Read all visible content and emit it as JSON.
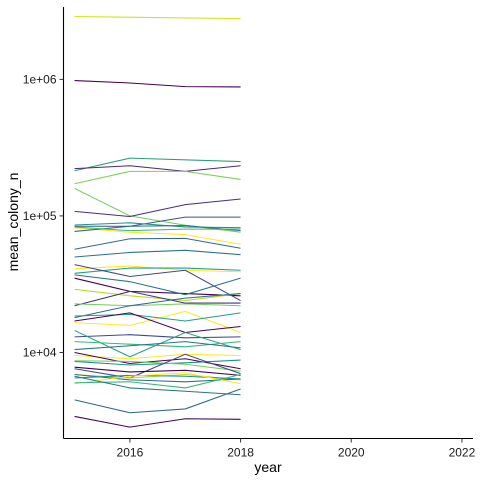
{
  "chart_data": {
    "type": "line",
    "title": "",
    "xlabel": "year",
    "ylabel": "mean_colony_n",
    "x": [
      2015,
      2016,
      2017,
      2018
    ],
    "xlim": [
      2014.8,
      2022.2
    ],
    "ylim_log10": [
      3.37,
      6.53
    ],
    "y_scale": "log10",
    "x_ticks": [
      2016,
      2018,
      2020,
      2022
    ],
    "x_tick_labels": [
      "2016",
      "2018",
      "2020",
      "2022"
    ],
    "y_ticks": [
      10000,
      100000,
      1000000
    ],
    "y_tick_labels": [
      "1e+04",
      "1e+05",
      "1e+06"
    ],
    "grid": false,
    "legend": "none",
    "series": [
      {
        "color": "#d2e21b",
        "values": [
          2888000,
          null,
          null,
          2784000
        ]
      },
      {
        "color": "#440154",
        "values": [
          980000,
          941000,
          885000,
          880000
        ]
      },
      {
        "color": "#2a9d7c",
        "values": [
          214000,
          265000,
          null,
          250000
        ]
      },
      {
        "color": "#482677",
        "values": [
          222000,
          233000,
          212000,
          233000
        ]
      },
      {
        "color": "#7ad151",
        "values": [
          172000,
          212000,
          212000,
          185000
        ]
      },
      {
        "color": "#6ece58",
        "values": [
          159000,
          100000,
          85500,
          76000
        ]
      },
      {
        "color": "#472d7b",
        "values": [
          108000,
          99000,
          121000,
          133000
        ]
      },
      {
        "color": "#3b528b",
        "values": [
          84000,
          84000,
          98000,
          98000
        ]
      },
      {
        "color": "#21918c",
        "values": [
          85800,
          89000,
          83000,
          82000
        ]
      },
      {
        "color": "#fde725",
        "values": [
          82000,
          76000,
          73000,
          62000
        ]
      },
      {
        "color": "#2c728e",
        "values": [
          77000,
          84000,
          85000,
          78000
        ]
      },
      {
        "color": "#35b779",
        "values": [
          83000,
          78000,
          80000,
          80000
        ]
      },
      {
        "color": "#31688e",
        "values": [
          57000,
          68000,
          68500,
          58000
        ]
      },
      {
        "color": "#2c728e",
        "values": [
          50000,
          54000,
          56000,
          52000
        ]
      },
      {
        "color": "#fde725",
        "values": [
          41000,
          43000,
          40000,
          39000
        ]
      },
      {
        "color": "#1f9e89",
        "values": [
          38000,
          41500,
          41500,
          40000
        ]
      },
      {
        "color": "#3e4a89",
        "values": [
          44000,
          36000,
          40000,
          24000
        ]
      },
      {
        "color": "#440154",
        "values": [
          35000,
          28000,
          27000,
          26000
        ]
      },
      {
        "color": "#2c728e",
        "values": [
          37000,
          33000,
          26500,
          35000
        ]
      },
      {
        "color": "#b5de2b",
        "values": [
          29000,
          26000,
          24000,
          27000
        ]
      },
      {
        "color": "#46337e",
        "values": [
          22000,
          28000,
          23000,
          23000
        ]
      },
      {
        "color": "#6ece58",
        "values": [
          22700,
          22000,
          22700,
          22000
        ]
      },
      {
        "color": "#31688e",
        "values": [
          18000,
          22000,
          25000,
          27000
        ]
      },
      {
        "color": "#fde725",
        "values": [
          16500,
          15800,
          20000,
          14000
        ]
      },
      {
        "color": "#1f9e89",
        "values": [
          18500,
          19000,
          17000,
          19500
        ]
      },
      {
        "color": "#440154",
        "values": [
          17000,
          19500,
          14000,
          15500
        ]
      },
      {
        "color": "#3e4a89",
        "values": [
          13000,
          13500,
          12800,
          13000
        ]
      },
      {
        "color": "#21a585",
        "values": [
          14500,
          9300,
          14000,
          10500
        ]
      },
      {
        "color": "#35b779",
        "values": [
          12000,
          11500,
          11000,
          12000
        ]
      },
      {
        "color": "#2c728e",
        "values": [
          10500,
          11200,
          12000,
          10800
        ]
      },
      {
        "color": "#fde725",
        "values": [
          9500,
          9000,
          9700,
          9500
        ]
      },
      {
        "color": "#440154",
        "values": [
          10000,
          8300,
          9000,
          7600
        ]
      },
      {
        "color": "#21918c",
        "values": [
          8600,
          8100,
          8400,
          8800
        ]
      },
      {
        "color": "#6ece58",
        "values": [
          8700,
          8600,
          8200,
          7300
        ]
      },
      {
        "color": "#3e4a89",
        "values": [
          7600,
          6500,
          9700,
          7000
        ]
      },
      {
        "color": "#440154",
        "values": [
          7800,
          7200,
          7400,
          6800
        ]
      },
      {
        "color": "#b5de2b",
        "values": [
          6900,
          6500,
          6900,
          6300
        ]
      },
      {
        "color": "#2c728e",
        "values": [
          6900,
          6300,
          6100,
          6400
        ]
      },
      {
        "color": "#21918c",
        "values": [
          6500,
          6800,
          6700,
          6400
        ]
      },
      {
        "color": "#fde725",
        "values": [
          5900,
          6700,
          7100,
          5900
        ]
      },
      {
        "color": "#35b779",
        "values": [
          6000,
          6100,
          5500,
          6900
        ]
      },
      {
        "color": "#2c728e",
        "values": [
          6700,
          5500,
          5200,
          4900
        ]
      },
      {
        "color": "#31688e",
        "values": [
          4500,
          3620,
          3860,
          5400
        ]
      },
      {
        "color": "#440154",
        "values": [
          3400,
          2840,
          3270,
          3240
        ]
      }
    ]
  }
}
